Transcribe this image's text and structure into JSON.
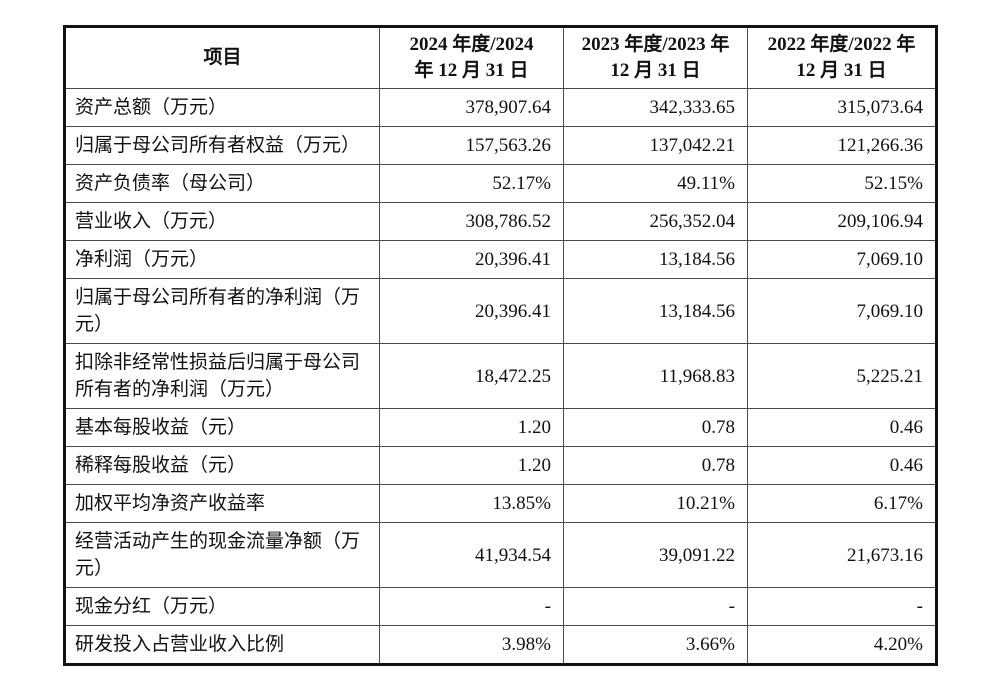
{
  "page": {
    "background": "#ffffff",
    "text_color": "#111111",
    "outer_border_color": "#111111",
    "inner_border_color": "#4a4a4a"
  },
  "table": {
    "columns": [
      {
        "line1": "项目",
        "line2": ""
      },
      {
        "line1": "2024 年度/2024",
        "line2": "年 12 月 31 日"
      },
      {
        "line1": "2023 年度/2023 年",
        "line2": "12 月 31 日"
      },
      {
        "line1": "2022 年度/2022 年",
        "line2": "12 月 31 日"
      }
    ],
    "rows": [
      {
        "label": "资产总额（万元）",
        "values": [
          "378,907.64",
          "342,333.65",
          "315,073.64"
        ]
      },
      {
        "label": "归属于母公司所有者权益（万元）",
        "values": [
          "157,563.26",
          "137,042.21",
          "121,266.36"
        ]
      },
      {
        "label": "资产负债率（母公司）",
        "values": [
          "52.17%",
          "49.11%",
          "52.15%"
        ]
      },
      {
        "label": "营业收入（万元）",
        "values": [
          "308,786.52",
          "256,352.04",
          "209,106.94"
        ]
      },
      {
        "label": "净利润（万元）",
        "values": [
          "20,396.41",
          "13,184.56",
          "7,069.10"
        ]
      },
      {
        "label": "归属于母公司所有者的净利润（万元）",
        "values": [
          "20,396.41",
          "13,184.56",
          "7,069.10"
        ]
      },
      {
        "label": "扣除非经常性损益后归属于母公司所有者的净利润（万元）",
        "values": [
          "18,472.25",
          "11,968.83",
          "5,225.21"
        ]
      },
      {
        "label": "基本每股收益（元）",
        "values": [
          "1.20",
          "0.78",
          "0.46"
        ]
      },
      {
        "label": "稀释每股收益（元）",
        "values": [
          "1.20",
          "0.78",
          "0.46"
        ]
      },
      {
        "label": "加权平均净资产收益率",
        "values": [
          "13.85%",
          "10.21%",
          "6.17%"
        ]
      },
      {
        "label": "经营活动产生的现金流量净额（万元）",
        "values": [
          "41,934.54",
          "39,091.22",
          "21,673.16"
        ]
      },
      {
        "label": "现金分红（万元）",
        "values": [
          "-",
          "-",
          "-"
        ]
      },
      {
        "label": "研发投入占营业收入比例",
        "values": [
          "3.98%",
          "3.66%",
          "4.20%"
        ]
      }
    ]
  }
}
